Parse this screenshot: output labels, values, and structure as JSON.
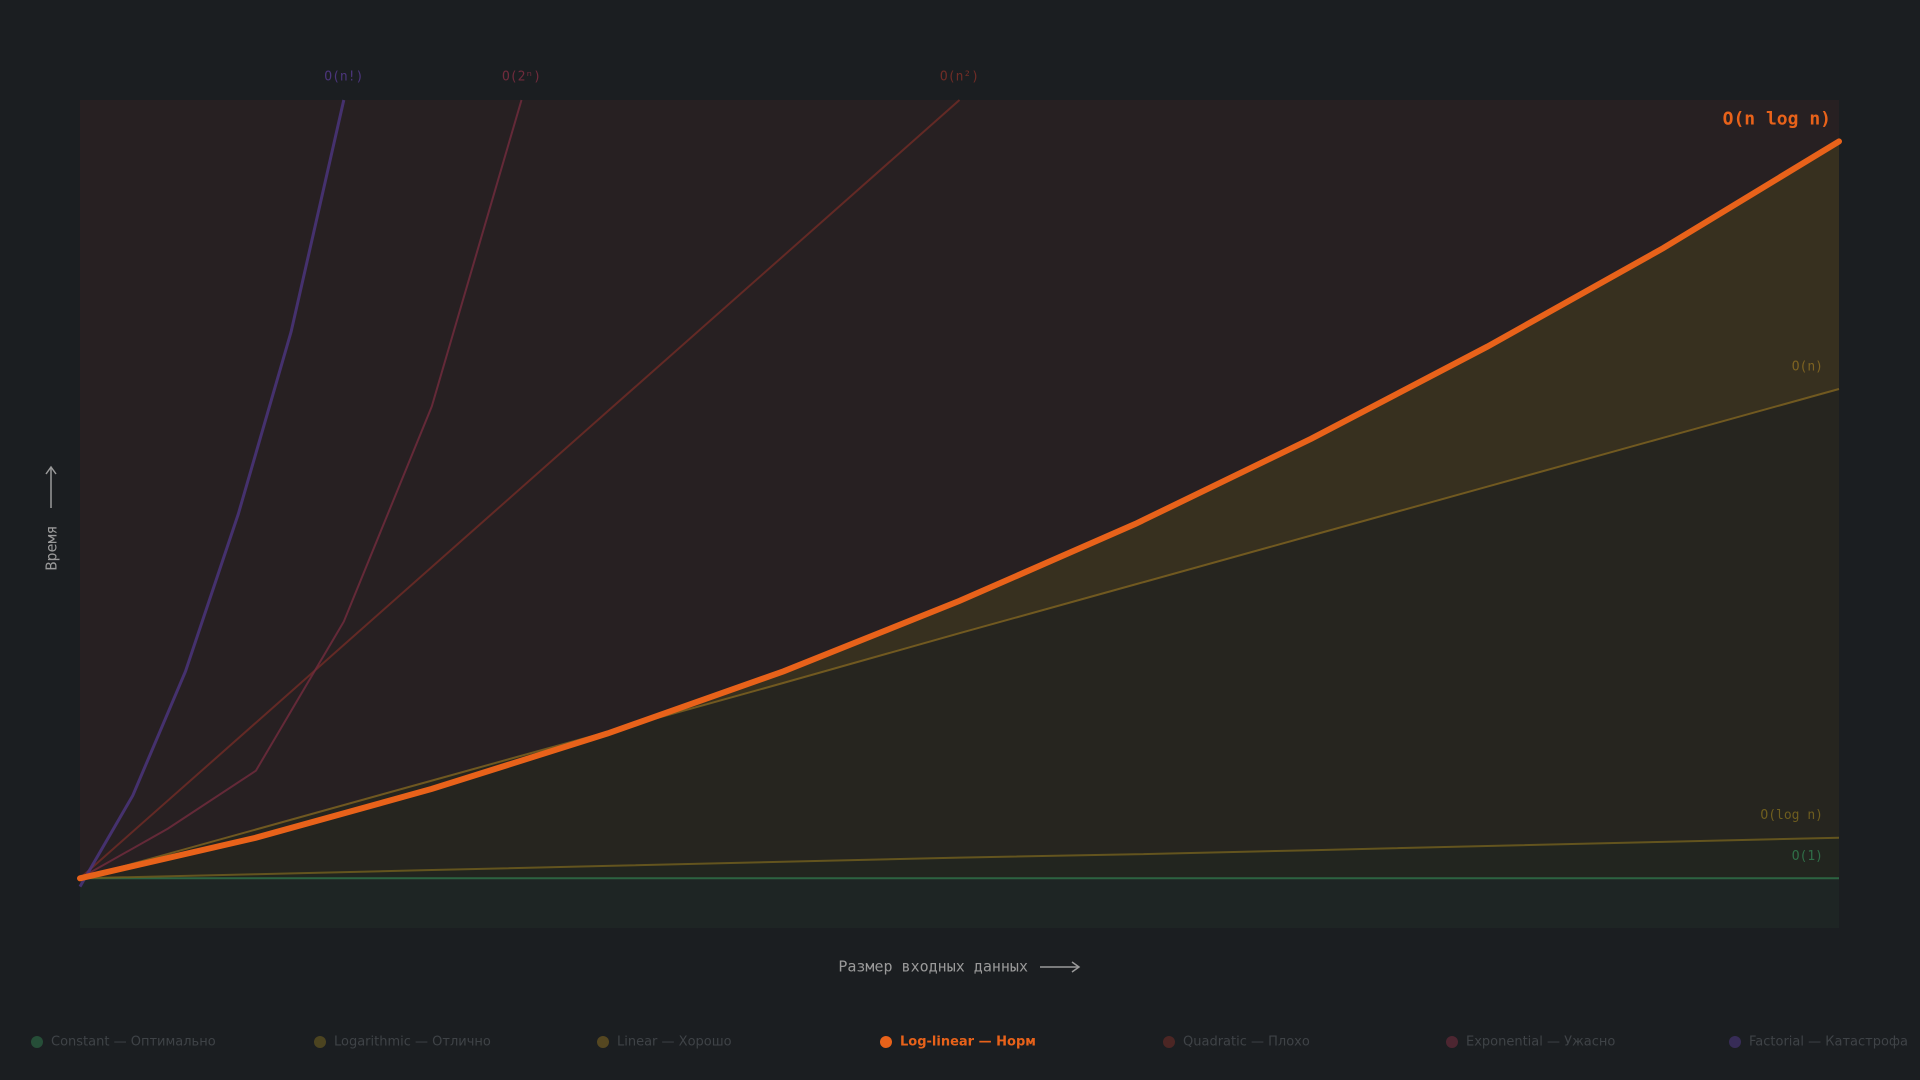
{
  "chart_data": {
    "type": "line",
    "x_label": "Размер входных данных",
    "y_label": "Время",
    "xlim": [
      0,
      100
    ],
    "ylim": [
      0,
      100
    ],
    "grid": false,
    "legend": "bottom",
    "highlight_series": 3,
    "series": [
      {
        "name": "Constant — Оптимально",
        "label": "O(1)",
        "color": "#2f6e47",
        "x": [
          0,
          100
        ],
        "values": [
          6,
          6
        ]
      },
      {
        "name": "Logarithmic — Отлично",
        "label": "O(log n)",
        "color": "#6e5d1f",
        "x": [
          0,
          10,
          20,
          30,
          40,
          50,
          60,
          70,
          80,
          90,
          100
        ],
        "values": [
          6,
          6.5,
          7,
          7.5,
          8,
          8.5,
          8.9,
          9.4,
          9.9,
          10.4,
          10.9
        ]
      },
      {
        "name": "Linear — Хорошо",
        "label": "O(n)",
        "color": "#7d6221",
        "x": [
          0,
          10,
          20,
          30,
          40,
          50,
          60,
          70,
          80,
          90,
          100
        ],
        "values": [
          6,
          11.9,
          17.8,
          23.7,
          29.6,
          35.6,
          41.5,
          47.4,
          53.3,
          59.2,
          65.1
        ]
      },
      {
        "name": "Log-linear — Норм",
        "label": "O(n log n)",
        "color": "#e8621a",
        "x": [
          0,
          10,
          20,
          30,
          40,
          50,
          60,
          70,
          80,
          90,
          100
        ],
        "values": [
          6,
          10.9,
          16.8,
          23.5,
          31,
          39.5,
          48.8,
          59.1,
          70.2,
          82.1,
          95
        ]
      },
      {
        "name": "Quadratic — Плохо",
        "label": "O(n²)",
        "color": "#6e2c26",
        "x": [
          0,
          10,
          20,
          30,
          40,
          50
        ],
        "values": [
          6,
          24.8,
          43.6,
          62.4,
          81.2,
          100
        ]
      },
      {
        "name": "Exponential — Ужасно",
        "label": "O(2ⁿ)",
        "color": "#702b3c",
        "x": [
          0,
          5,
          10,
          15,
          20,
          25.1
        ],
        "values": [
          6,
          12,
          19,
          37,
          63,
          100
        ]
      },
      {
        "name": "Factorial — Катастрофа",
        "label": "O(n!)",
        "color": "#4b357b",
        "x": [
          0,
          3,
          6,
          9,
          12,
          15
        ],
        "values": [
          5,
          16,
          31,
          50,
          72,
          100
        ]
      }
    ]
  }
}
